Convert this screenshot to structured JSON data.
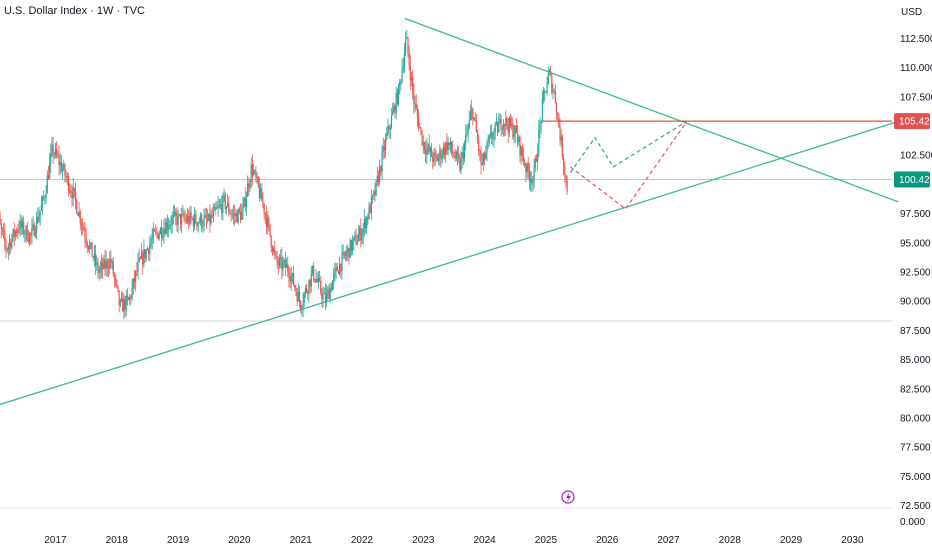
{
  "header": {
    "title": "U.S. Dollar Index · 1W · TVC"
  },
  "colors": {
    "up": "#26a69a",
    "down": "#ef5350",
    "trend": "#3cb98f",
    "level": "#e05252",
    "current": "#089981",
    "lightning": "#9c27b0"
  },
  "chart_data": {
    "type": "candlestick",
    "currency_label": "USD",
    "y_ticks": [
      72.5,
      75.0,
      77.5,
      80.0,
      82.5,
      85.0,
      87.5,
      90.0,
      92.5,
      95.0,
      97.5,
      102.5,
      107.5,
      110.0,
      112.5
    ],
    "y_zero_label": "0.000",
    "x_ticks": [
      "2017",
      "2018",
      "2019",
      "2020",
      "2021",
      "2022",
      "2023",
      "2024",
      "2025",
      "2026",
      "2027",
      "2028",
      "2029",
      "2030"
    ],
    "price_path": [
      [
        2016.0,
        98.0
      ],
      [
        2016.2,
        94.5
      ],
      [
        2016.4,
        96.5
      ],
      [
        2016.6,
        95.5
      ],
      [
        2016.8,
        98.5
      ],
      [
        2016.95,
        103.0
      ],
      [
        2017.1,
        101.5
      ],
      [
        2017.3,
        99.0
      ],
      [
        2017.5,
        95.5
      ],
      [
        2017.7,
        92.5
      ],
      [
        2017.9,
        93.5
      ],
      [
        2018.05,
        89.5
      ],
      [
        2018.2,
        90.0
      ],
      [
        2018.35,
        93.0
      ],
      [
        2018.6,
        95.5
      ],
      [
        2018.9,
        97.0
      ],
      [
        2019.2,
        97.0
      ],
      [
        2019.5,
        96.8
      ],
      [
        2019.75,
        98.5
      ],
      [
        2019.9,
        97.3
      ],
      [
        2020.05,
        97.5
      ],
      [
        2020.2,
        101.5
      ],
      [
        2020.4,
        98.0
      ],
      [
        2020.6,
        93.3
      ],
      [
        2020.8,
        92.8
      ],
      [
        2021.0,
        89.8
      ],
      [
        2021.2,
        92.5
      ],
      [
        2021.4,
        90.0
      ],
      [
        2021.6,
        92.8
      ],
      [
        2021.8,
        94.5
      ],
      [
        2022.0,
        96.0
      ],
      [
        2022.2,
        99.0
      ],
      [
        2022.4,
        104.0
      ],
      [
        2022.6,
        108.0
      ],
      [
        2022.72,
        112.5
      ],
      [
        2022.85,
        107.0
      ],
      [
        2023.0,
        103.5
      ],
      [
        2023.2,
        102.0
      ],
      [
        2023.4,
        103.5
      ],
      [
        2023.6,
        101.5
      ],
      [
        2023.8,
        106.5
      ],
      [
        2023.95,
        101.5
      ],
      [
        2024.1,
        104.0
      ],
      [
        2024.3,
        105.5
      ],
      [
        2024.5,
        104.5
      ],
      [
        2024.7,
        101.0
      ],
      [
        2024.8,
        100.5
      ],
      [
        2024.95,
        107.0
      ],
      [
        2025.05,
        109.5
      ],
      [
        2025.15,
        107.5
      ],
      [
        2025.25,
        103.5
      ],
      [
        2025.35,
        99.5
      ]
    ],
    "current_price": "100.424",
    "current_price_value": 100.424,
    "resistance_level": "105.420",
    "resistance_value": 105.42,
    "projections": {
      "green": [
        [
          2025.4,
          101.0
        ],
        [
          2025.8,
          104.0
        ],
        [
          2026.1,
          101.5
        ],
        [
          2027.3,
          105.4
        ]
      ],
      "red": [
        [
          2025.4,
          101.5
        ],
        [
          2026.3,
          97.9
        ],
        [
          2027.3,
          105.4
        ]
      ]
    },
    "trendlines": {
      "upper": [
        [
          2022.7,
          114.2
        ],
        [
          2030.75,
          98.5
        ]
      ],
      "lower": [
        [
          2016.0,
          81.0
        ],
        [
          2030.75,
          105.4
        ]
      ]
    },
    "horizontal_guides": [
      100.424,
      88.3
    ]
  }
}
